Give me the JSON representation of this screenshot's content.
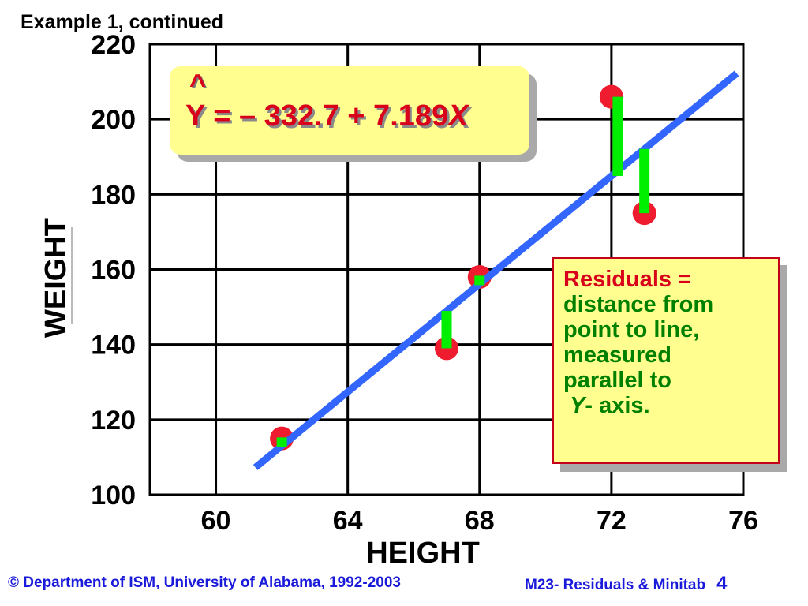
{
  "slide_title": "Example 1, continued",
  "equation": {
    "hat": "^",
    "lhs_and_constants": "Y = – 332.7 + 7.189",
    "variable": "X"
  },
  "note": {
    "lines": [
      "Residuals =",
      "distance from",
      "point to line,",
      "measured",
      "parallel to"
    ],
    "last_var": "Y",
    "last_rest": "- axis."
  },
  "footer": {
    "left": "© Department of ISM, University of Alabama, 1992-2003",
    "right": "M23-  Residuals &  Minitab",
    "page_number": "4"
  },
  "colors": {
    "regression_line": "#3366ff",
    "points": "#ee1c2e",
    "residual_bars": "#00ee00",
    "box_fill": "#fffe8e",
    "title_red": "#d9001b",
    "note_green": "#008000",
    "footer_blue": "#1a1adb"
  },
  "chart_data": {
    "type": "scatter",
    "xlabel": "HEIGHT",
    "ylabel": "WEIGHT",
    "xlim": [
      58,
      76
    ],
    "ylim": [
      100,
      220
    ],
    "x_ticks": [
      60,
      64,
      68,
      72,
      76
    ],
    "y_ticks": [
      100,
      120,
      140,
      160,
      180,
      200,
      220
    ],
    "grid": true,
    "points": [
      {
        "x": 62,
        "y": 115
      },
      {
        "x": 67,
        "y": 139
      },
      {
        "x": 68,
        "y": 158
      },
      {
        "x": 72,
        "y": 206
      },
      {
        "x": 73,
        "y": 175
      }
    ],
    "regression": {
      "intercept": -332.7,
      "slope": 7.189,
      "x_range": [
        61.2,
        75.8
      ]
    }
  }
}
